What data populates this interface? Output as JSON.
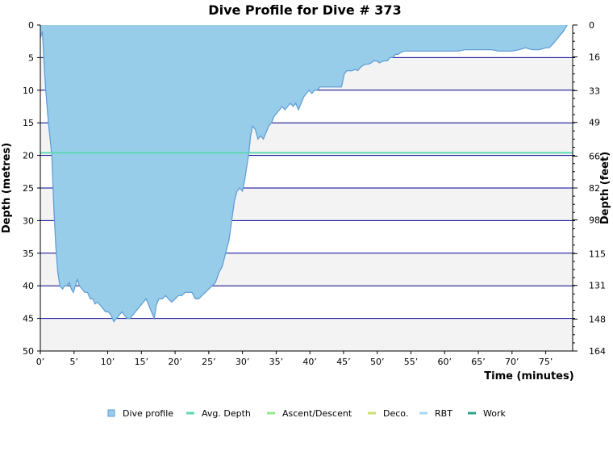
{
  "chart_data": {
    "type": "area",
    "title": "Dive Profile for Dive # 373",
    "xlabel": "Time (minutes)",
    "ylabel_left": "Depth (metres)",
    "ylabel_right": "Depth (feet)",
    "xlim": [
      0,
      79
    ],
    "ylim": [
      0,
      50
    ],
    "y_inverted": true,
    "x_ticks": [
      0,
      5,
      10,
      15,
      20,
      25,
      30,
      35,
      40,
      45,
      50,
      55,
      60,
      65,
      70,
      75
    ],
    "x_tick_labels": [
      "0’",
      "5’",
      "10’",
      "15’",
      "20’",
      "25’",
      "30’",
      "35’",
      "40’",
      "45’",
      "50’",
      "55’",
      "60’",
      "65’",
      "70’",
      "75’"
    ],
    "y_left_ticks": [
      0,
      5,
      10,
      15,
      20,
      25,
      30,
      35,
      40,
      45,
      50
    ],
    "y_left_tick_labels": [
      "0",
      "5",
      "10",
      "15",
      "20",
      "25",
      "30",
      "35",
      "40",
      "45",
      "50"
    ],
    "y_right_ticks": [
      0,
      16,
      33,
      49,
      66,
      82,
      98,
      115,
      131,
      148,
      164
    ],
    "y_right_tick_labels": [
      "0",
      "16",
      "33",
      "49",
      "66",
      "82",
      "98",
      "115",
      "131",
      "148",
      "164"
    ],
    "grid": true,
    "alternating_bands": true,
    "legend_position": "bottom",
    "series": [
      {
        "name": "Dive profile",
        "color": "#97cde8",
        "line_color": "#5b9bd5",
        "points": [
          [
            0,
            2
          ],
          [
            0.3,
            1
          ],
          [
            0.5,
            5
          ],
          [
            0.8,
            10
          ],
          [
            1.2,
            15
          ],
          [
            1.7,
            20
          ],
          [
            2,
            28
          ],
          [
            2.3,
            34
          ],
          [
            2.6,
            38
          ],
          [
            2.9,
            40
          ],
          [
            3.3,
            40.5
          ],
          [
            3.6,
            40
          ],
          [
            4,
            40
          ],
          [
            4.3,
            39.5
          ],
          [
            4.6,
            40.5
          ],
          [
            4.9,
            41
          ],
          [
            5.2,
            40
          ],
          [
            5.5,
            39
          ],
          [
            5.8,
            40
          ],
          [
            6.2,
            40.5
          ],
          [
            6.6,
            41
          ],
          [
            7,
            41
          ],
          [
            7.4,
            42
          ],
          [
            7.8,
            42
          ],
          [
            8.1,
            42.8
          ],
          [
            8.5,
            42.5
          ],
          [
            8.9,
            43
          ],
          [
            9.3,
            43.5
          ],
          [
            9.7,
            44
          ],
          [
            10.1,
            44
          ],
          [
            10.5,
            44.5
          ],
          [
            10.9,
            45.5
          ],
          [
            11.3,
            45
          ],
          [
            11.7,
            44.5
          ],
          [
            12.1,
            44
          ],
          [
            12.5,
            44.5
          ],
          [
            12.9,
            45
          ],
          [
            13.3,
            45
          ],
          [
            13.7,
            44.5
          ],
          [
            14.1,
            44
          ],
          [
            14.5,
            43.5
          ],
          [
            14.9,
            43
          ],
          [
            15.3,
            42.5
          ],
          [
            15.7,
            42
          ],
          [
            16.1,
            43
          ],
          [
            16.5,
            44
          ],
          [
            16.9,
            45
          ],
          [
            17.2,
            43
          ],
          [
            17.6,
            42
          ],
          [
            18.1,
            42
          ],
          [
            18.6,
            41.5
          ],
          [
            19,
            42
          ],
          [
            19.5,
            42.5
          ],
          [
            20,
            42
          ],
          [
            20.5,
            41.5
          ],
          [
            21,
            41.5
          ],
          [
            21.5,
            41
          ],
          [
            22,
            41
          ],
          [
            22.5,
            41
          ],
          [
            23,
            42
          ],
          [
            23.5,
            42
          ],
          [
            24,
            41.5
          ],
          [
            24.5,
            41
          ],
          [
            25,
            40.5
          ],
          [
            25.5,
            40
          ],
          [
            26,
            39.5
          ],
          [
            26.5,
            38
          ],
          [
            27,
            37
          ],
          [
            27.5,
            35
          ],
          [
            28,
            33
          ],
          [
            28.4,
            30
          ],
          [
            28.8,
            27
          ],
          [
            29.2,
            25.5
          ],
          [
            29.6,
            25
          ],
          [
            30,
            25.5
          ],
          [
            30.3,
            24
          ],
          [
            30.6,
            22
          ],
          [
            30.9,
            20
          ],
          [
            31.2,
            17
          ],
          [
            31.5,
            15.5
          ],
          [
            31.9,
            16
          ],
          [
            32.3,
            17.5
          ],
          [
            32.7,
            17
          ],
          [
            33.1,
            17.5
          ],
          [
            33.5,
            16.5
          ],
          [
            33.9,
            15.5
          ],
          [
            34.3,
            15
          ],
          [
            34.7,
            14
          ],
          [
            35.1,
            13.5
          ],
          [
            35.5,
            13
          ],
          [
            35.9,
            12.5
          ],
          [
            36.3,
            13
          ],
          [
            36.7,
            12.5
          ],
          [
            37.1,
            12
          ],
          [
            37.5,
            12.5
          ],
          [
            37.9,
            12
          ],
          [
            38.3,
            13
          ],
          [
            38.7,
            12
          ],
          [
            39.1,
            11
          ],
          [
            39.5,
            10.5
          ],
          [
            39.9,
            10
          ],
          [
            40.3,
            10.5
          ],
          [
            40.7,
            10
          ],
          [
            41.1,
            10
          ],
          [
            41.5,
            9.5
          ],
          [
            41.9,
            9.5
          ],
          [
            42.3,
            9.5
          ],
          [
            42.7,
            9.5
          ],
          [
            43.1,
            9.5
          ],
          [
            43.5,
            9.5
          ],
          [
            43.9,
            9.5
          ],
          [
            44.3,
            9.5
          ],
          [
            44.7,
            9.5
          ],
          [
            45.1,
            7.5
          ],
          [
            45.5,
            7
          ],
          [
            45.9,
            7
          ],
          [
            46.3,
            7
          ],
          [
            46.7,
            6.8
          ],
          [
            47.1,
            7
          ],
          [
            47.5,
            6.5
          ],
          [
            47.9,
            6.2
          ],
          [
            48.3,
            6
          ],
          [
            48.7,
            6
          ],
          [
            49.1,
            5.8
          ],
          [
            49.5,
            5.5
          ],
          [
            49.9,
            5.5
          ],
          [
            50.3,
            5.8
          ],
          [
            50.7,
            5.6
          ],
          [
            51.1,
            5.5
          ],
          [
            51.5,
            5.5
          ],
          [
            51.9,
            5
          ],
          [
            52.3,
            5
          ],
          [
            52.7,
            4.5
          ],
          [
            53.1,
            4.5
          ],
          [
            53.5,
            4.2
          ],
          [
            54,
            4
          ],
          [
            55,
            4
          ],
          [
            56,
            4
          ],
          [
            57,
            4
          ],
          [
            58,
            4
          ],
          [
            59,
            4
          ],
          [
            60,
            4
          ],
          [
            61,
            4
          ],
          [
            62,
            4
          ],
          [
            63,
            3.8
          ],
          [
            64,
            3.8
          ],
          [
            65,
            3.8
          ],
          [
            66,
            3.8
          ],
          [
            67,
            3.8
          ],
          [
            68,
            4
          ],
          [
            69,
            4
          ],
          [
            70,
            4
          ],
          [
            71,
            3.8
          ],
          [
            72,
            3.5
          ],
          [
            73,
            3.8
          ],
          [
            74,
            3.8
          ],
          [
            75,
            3.5
          ],
          [
            75.5,
            3.5
          ],
          [
            76,
            3
          ],
          [
            76.4,
            2.5
          ],
          [
            76.8,
            2
          ],
          [
            77.2,
            1.5
          ],
          [
            77.6,
            1
          ],
          [
            77.9,
            0.5
          ],
          [
            78.2,
            0
          ]
        ]
      },
      {
        "name": "Avg. Depth",
        "color": "#5fd7b4",
        "y": 19.6
      },
      {
        "name": "Ascent/Descent",
        "color": "#90e890"
      },
      {
        "name": "Deco.",
        "color": "#c8e06e"
      },
      {
        "name": "RBT",
        "color": "#a8d8ee"
      },
      {
        "name": "Work",
        "color": "#2aa58a"
      }
    ],
    "colors": {
      "band": "#f3f3f3",
      "gridline": "#00008b",
      "axis": "#000000"
    }
  }
}
